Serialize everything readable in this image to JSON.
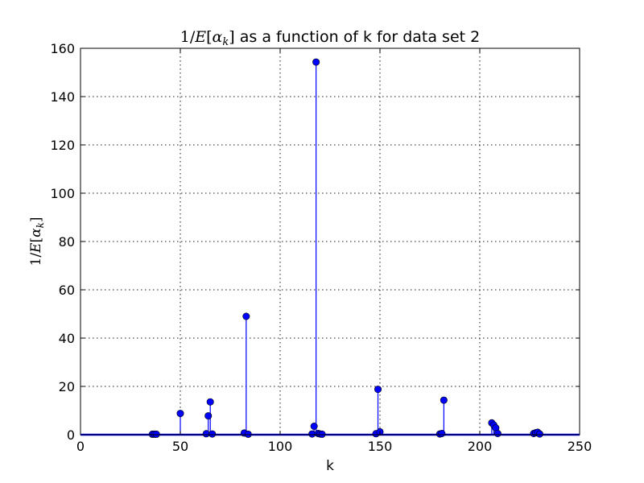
{
  "chart_data": {
    "type": "stem",
    "title": {
      "math_numerator": "1/",
      "math_E": "E",
      "math_alpha": "α",
      "math_sub": "k",
      "text_suffix": " as a function of k for data set 2"
    },
    "xlabel": "k",
    "ylabel": {
      "math_numerator": "1/",
      "math_E": "E",
      "math_alpha": "α",
      "math_sub": "k"
    },
    "xlim": [
      0,
      250
    ],
    "ylim": [
      0,
      160
    ],
    "x_ticks": [
      0,
      50,
      100,
      150,
      200,
      250
    ],
    "y_ticks": [
      0,
      20,
      40,
      60,
      80,
      100,
      120,
      140,
      160
    ],
    "grid": true,
    "baseline": 0,
    "colors": {
      "series": "#0000ff",
      "axes": "#000000"
    },
    "series": [
      {
        "x": [
          36,
          37,
          38,
          50,
          63,
          64,
          65,
          66,
          82,
          83,
          84,
          116,
          117,
          118,
          119,
          120,
          121,
          148,
          149,
          150,
          180,
          181,
          182,
          206,
          207,
          208,
          209,
          227,
          228,
          229,
          230
        ],
        "values": [
          0.2,
          0.2,
          0.2,
          8.8,
          0.4,
          7.8,
          13.6,
          0.3,
          0.7,
          49.0,
          0.2,
          0.3,
          3.5,
          154.3,
          0.5,
          0.3,
          0.2,
          0.4,
          18.8,
          1.2,
          0.3,
          0.5,
          14.3,
          4.9,
          4.0,
          2.8,
          0.5,
          0.5,
          0.8,
          1.0,
          0.3
        ]
      }
    ]
  }
}
